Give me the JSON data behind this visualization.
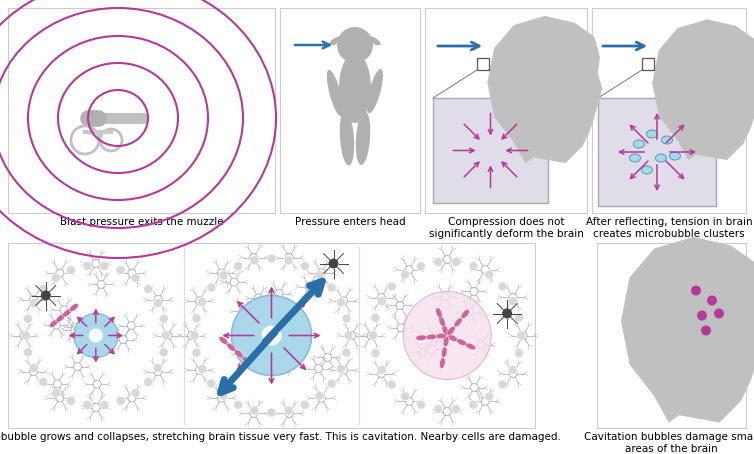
{
  "bg_color": "#ffffff",
  "magenta": "#b5399a",
  "light_blue": "#a8d8ea",
  "gray_head": "#c0c0c0",
  "gray_cell": "#b0b0b0",
  "pink_cell": "#cc6699",
  "panel_border": "#cccccc",
  "zoom_bg": "#e0dce8",
  "labels": [
    "Blast pressure exits the muzzle",
    "Pressure enters head",
    "Compression does not\nsignificantly deform the brain",
    "After reflecting, tension in brain\ncreates microbubble clusters",
    "A microbubble grows and collapses, stretching brain tissue very fast. This is cavitation. Nearby cells are damaged.",
    "Cavitation bubbles damage small\nareas of the brain"
  ],
  "label_fontsize": 7.5,
  "blue_arrow_color": "#2a6fa8"
}
